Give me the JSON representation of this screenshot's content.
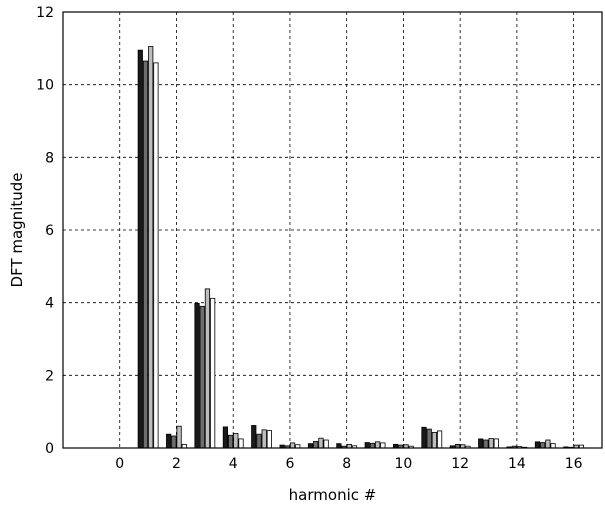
{
  "chart_data": {
    "type": "bar",
    "title": "",
    "xlabel": "harmonic #",
    "ylabel": "DFT magnitude",
    "xlim": [
      -2,
      17
    ],
    "ylim": [
      0,
      12
    ],
    "x_ticks": [
      0,
      2,
      4,
      6,
      8,
      10,
      12,
      14,
      16
    ],
    "y_ticks": [
      0,
      2,
      4,
      6,
      8,
      10,
      12
    ],
    "grid": true,
    "legend": "none",
    "series_colors": [
      "#1a1a1a",
      "#6e6e6e",
      "#bdbdbd",
      "#ffffff"
    ],
    "categories": [
      1,
      2,
      3,
      4,
      5,
      6,
      7,
      8,
      9,
      10,
      11,
      12,
      13,
      14,
      15,
      16
    ],
    "series": [
      {
        "values": [
          10.95,
          0.38,
          3.98,
          0.58,
          0.62,
          0.08,
          0.12,
          0.12,
          0.15,
          0.1,
          0.57,
          0.06,
          0.25,
          0.03,
          0.17,
          0.03
        ]
      },
      {
        "values": [
          10.65,
          0.33,
          3.9,
          0.35,
          0.38,
          0.06,
          0.18,
          0.05,
          0.13,
          0.08,
          0.52,
          0.1,
          0.22,
          0.05,
          0.15,
          0.02
        ]
      },
      {
        "values": [
          11.05,
          0.6,
          4.38,
          0.4,
          0.5,
          0.14,
          0.27,
          0.1,
          0.17,
          0.09,
          0.43,
          0.09,
          0.26,
          0.04,
          0.22,
          0.08
        ]
      },
      {
        "values": [
          10.6,
          0.1,
          4.12,
          0.25,
          0.48,
          0.09,
          0.22,
          0.06,
          0.14,
          0.05,
          0.47,
          0.05,
          0.25,
          0.02,
          0.12,
          0.08
        ]
      }
    ]
  }
}
